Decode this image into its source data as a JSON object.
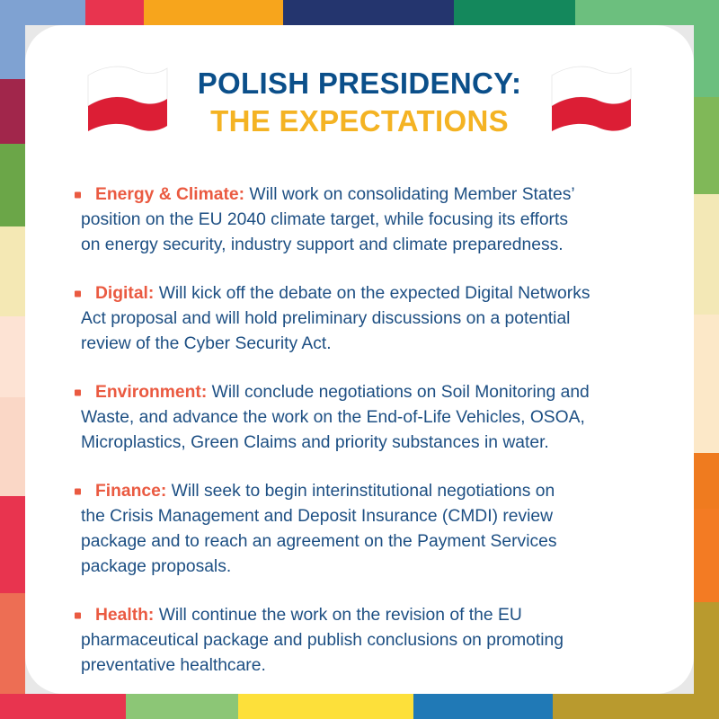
{
  "title": {
    "line1": "POLISH PRESIDENCY:",
    "line2": "THE EXPECTATIONS"
  },
  "colors": {
    "title_blue": "#0b4f8a",
    "title_yellow": "#f4b323",
    "bullet_head": "#ea5a41",
    "body_text": "#1d4f83",
    "flag_white": "#ffffff",
    "flag_red": "#dc1e35"
  },
  "icons": [
    "poland-flag-icon",
    "bullet-icon"
  ],
  "items": [
    {
      "head": "Energy & Climate:",
      "lines": [
        " Will work on consolidating Member States’",
        "position on the EU 2040 climate target, while focusing its efforts",
        "on energy security, industry support and climate preparedness."
      ]
    },
    {
      "head": "Digital:",
      "lines": [
        " Will kick off the debate on the expected Digital Networks",
        "Act proposal and will hold preliminary discussions on a potential",
        "review of the Cyber Security Act."
      ]
    },
    {
      "head": "Environment:",
      "lines": [
        " Will conclude negotiations on Soil Monitoring and",
        "Waste, and advance the work on the End-of-Life Vehicles, OSOA,",
        "Microplastics, Green Claims and priority substances in water."
      ]
    },
    {
      "head": "Finance:",
      "lines": [
        " Will seek to begin interinstitutional negotiations on",
        "the Crisis Management and Deposit Insurance (CMDI) review",
        "package and to reach an agreement on the Payment Services",
        "package proposals."
      ]
    },
    {
      "head": "Health:",
      "lines": [
        " Will continue the work on the revision of the EU",
        "pharmaceutical package and publish conclusions on promoting",
        "preventative healthcare."
      ]
    }
  ]
}
